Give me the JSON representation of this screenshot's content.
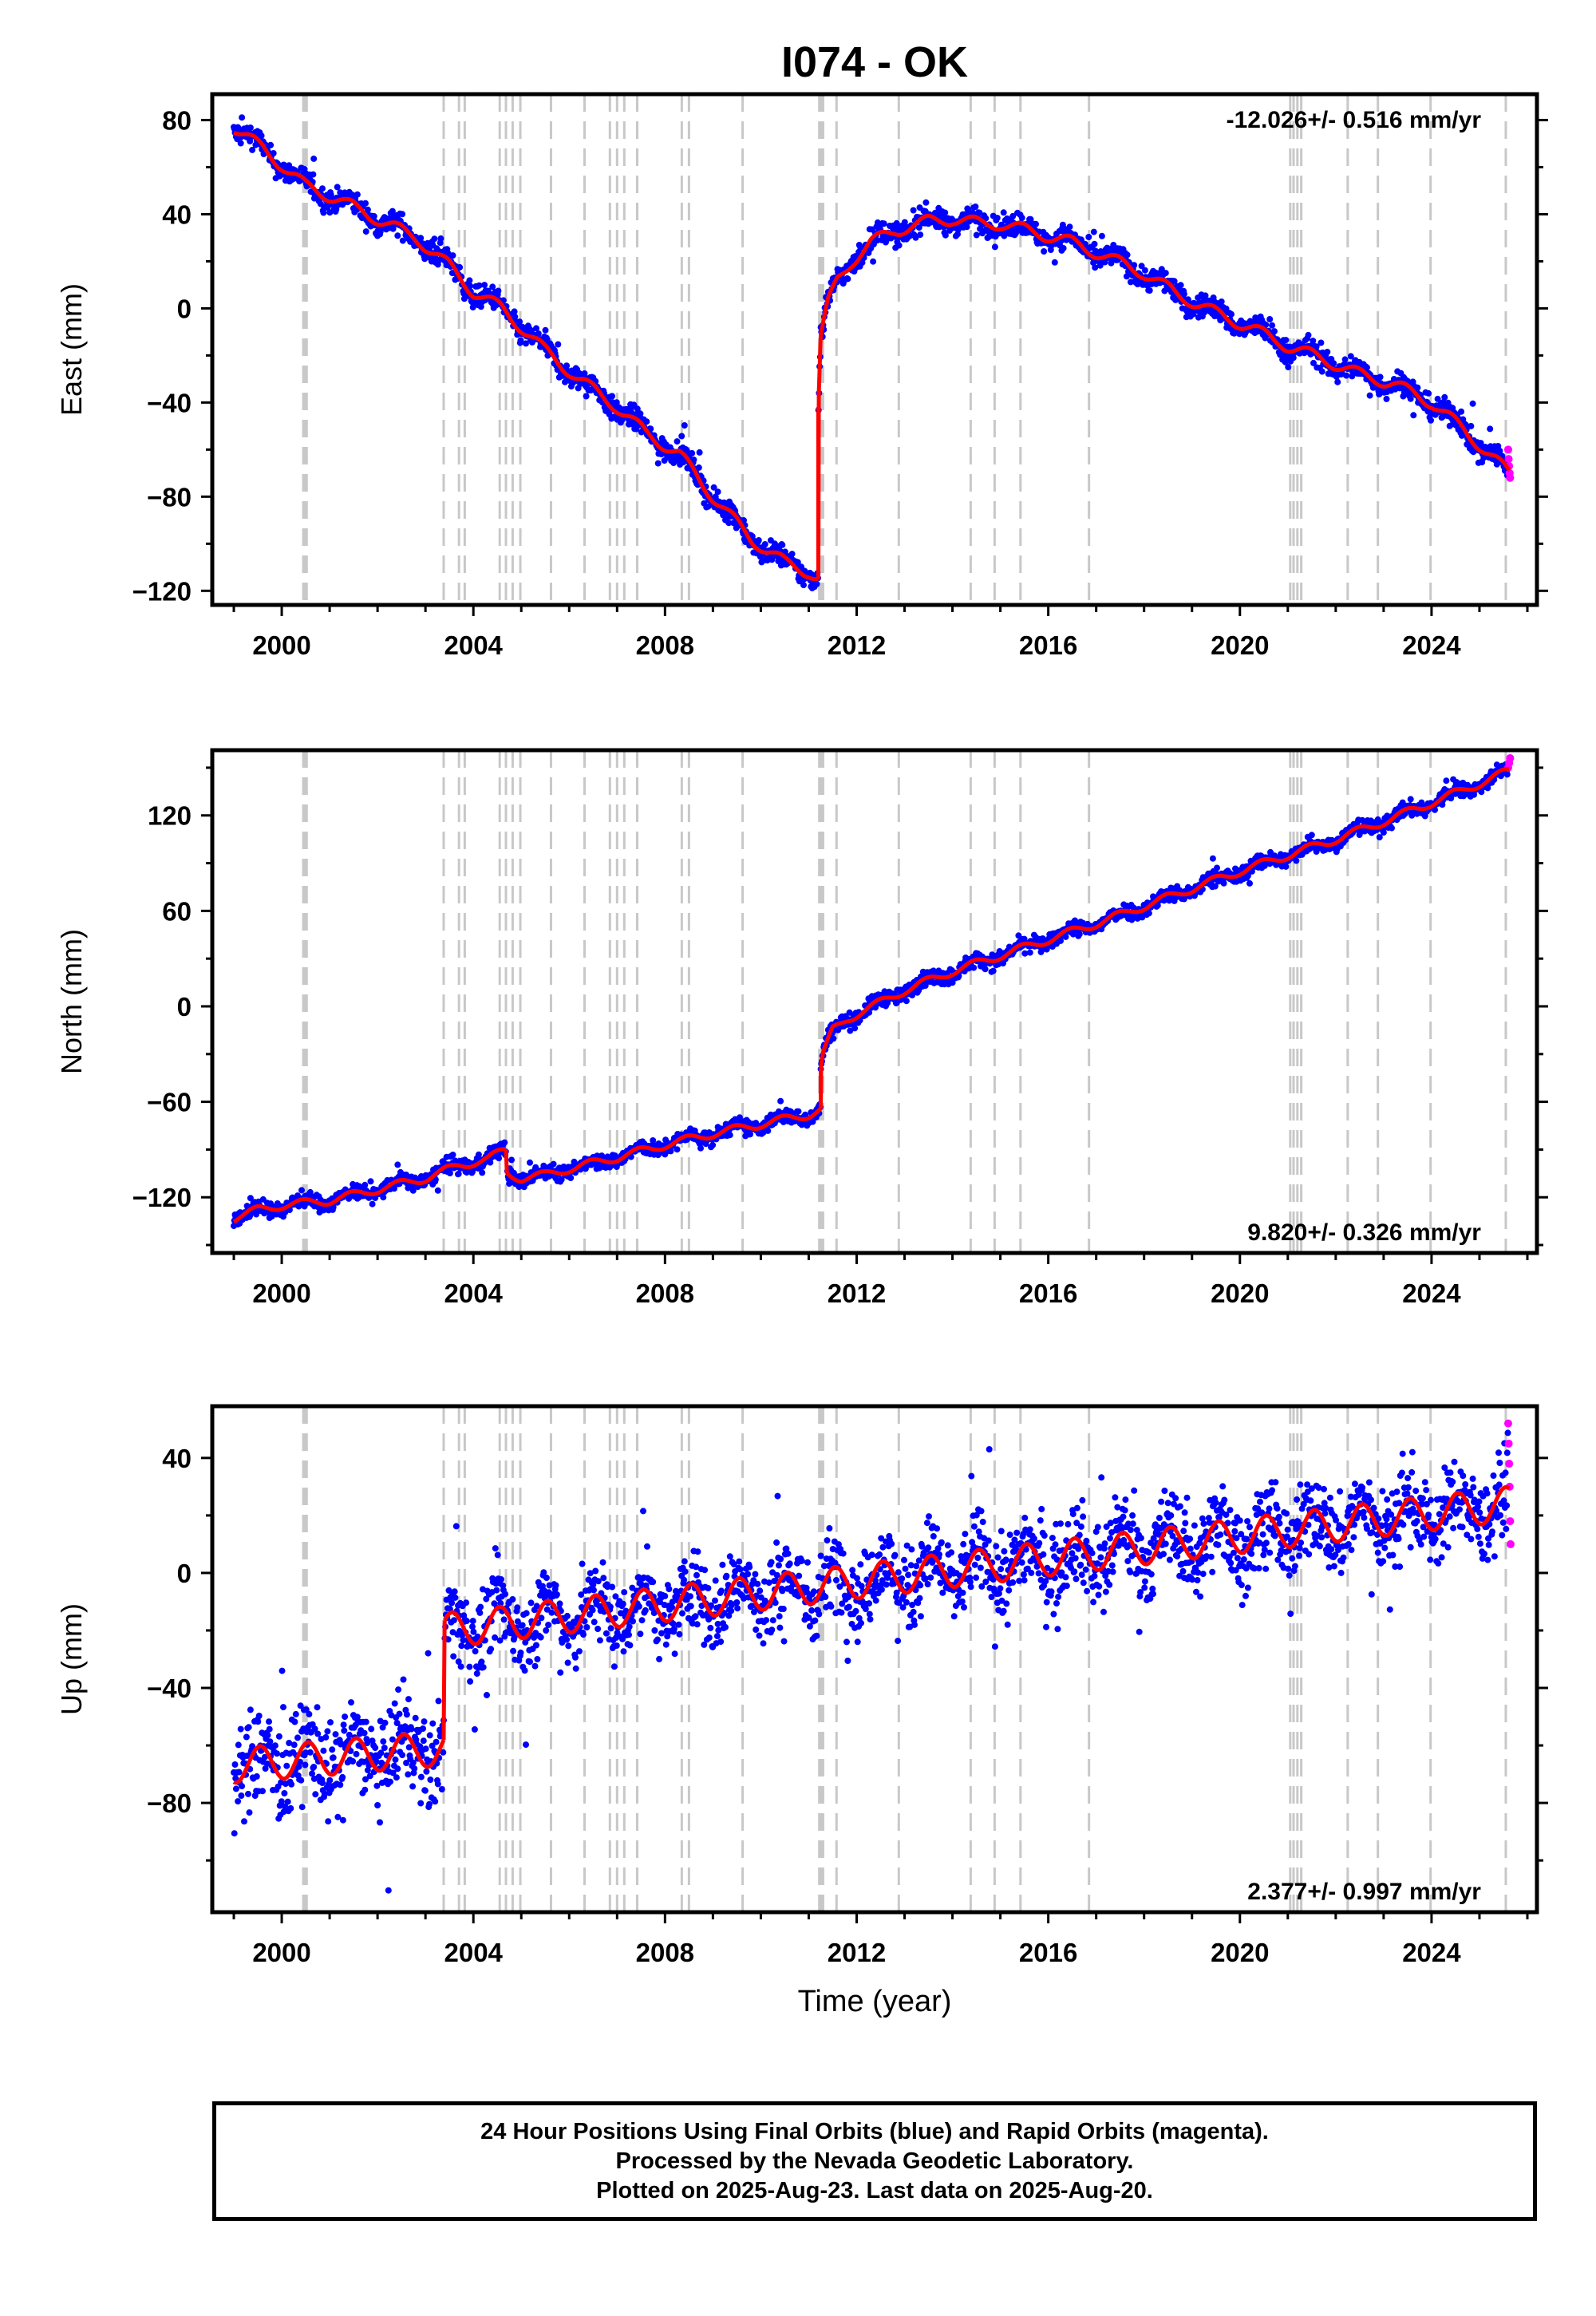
{
  "chart_data": {
    "type": "scatter",
    "title": "I074 - OK",
    "xlabel": "Time (year)",
    "xlim": [
      1998.55,
      2026.2
    ],
    "x_ticks": [
      2000,
      2004,
      2008,
      2012,
      2016,
      2020,
      2024
    ],
    "x_tick_labels": [
      "2000",
      "2004",
      "2008",
      "2012",
      "2016",
      "2020",
      "2024"
    ],
    "colors": {
      "final": "#0000ff",
      "rapid": "#ff00ff",
      "model": "#ff0000",
      "events": "#c8c8c8",
      "frame": "#000000"
    },
    "event_lines": [
      2000.45,
      2000.48,
      2000.5,
      2000.52,
      2003.38,
      2003.7,
      2003.82,
      2004.55,
      2004.68,
      2004.82,
      2004.98,
      2005.62,
      2006.32,
      2006.85,
      2007.0,
      2007.15,
      2007.42,
      2008.35,
      2008.5,
      2009.62,
      2011.22,
      2011.25,
      2011.27,
      2011.3,
      2011.58,
      2012.88,
      2014.38,
      2014.88,
      2015.42,
      2016.85,
      2021.05,
      2021.12,
      2021.2,
      2021.28,
      2022.25,
      2022.88,
      2023.98,
      2025.55
    ],
    "panels": [
      {
        "ylabel": "East (mm)",
        "ylim": [
          -126,
          91
        ],
        "y_ticks": [
          80,
          40,
          0,
          -40,
          -80,
          -120
        ],
        "y_tick_labels": [
          "80",
          "40",
          "0",
          "−40",
          "−80",
          "−120"
        ],
        "rate_label": "-12.026+/- 0.516 mm/yr",
        "rate_position": "top-right",
        "series": [
          {
            "x": [
              1999.0,
              1999.6,
              2000.5,
              2001.2,
              2002.0,
              2002.8,
              2003.5,
              2004.0,
              2004.6,
              2005.0,
              2005.5,
              2006.2,
              2007.0,
              2007.6,
              2008.3,
              2009.0,
              2009.8,
              2010.5,
              2011.0,
              2011.2
            ],
            "y": [
              77,
              68,
              52,
              46,
              38,
              30,
              18,
              7,
              0,
              -8,
              -18,
              -30,
              -42,
              -53,
              -62,
              -80,
              -98,
              -108,
              -112,
              -115
            ]
          },
          {
            "x": [
              2011.2,
              2011.25,
              2011.4,
              2011.6,
              2011.9,
              2012.3,
              2012.8,
              2013.5,
              2014.0,
              2014.6,
              2015.0,
              2015.6,
              2016.5,
              2017.2,
              2018.0,
              2018.7,
              2019.5,
              2020.2,
              2021.0,
              2021.8,
              2022.5,
              2023.2,
              2024.0,
              2024.7,
              2025.2,
              2025.62
            ],
            "y": [
              -42,
              -12,
              2,
              12,
              20,
              28,
              33,
              37,
              38,
              36,
              36,
              33,
              28,
              22,
              15,
              6,
              -2,
              -8,
              -16,
              -22,
              -28,
              -32,
              -40,
              -52,
              -62,
              -70
            ]
          }
        ],
        "rapid_points": {
          "x": [
            2025.6,
            2025.61,
            2025.62,
            2025.63,
            2025.64
          ],
          "y": [
            -60,
            -64,
            -67,
            -70,
            -72
          ]
        }
      },
      {
        "ylabel": "North (mm)",
        "ylim": [
          -155,
          161
        ],
        "y_ticks": [
          120,
          60,
          0,
          -60,
          -120
        ],
        "y_tick_labels": [
          "120",
          "60",
          "0",
          "−60",
          "−120"
        ],
        "rate_label": "9.820+/- 0.326 mm/yr",
        "rate_position": "bottom-right",
        "series": [
          {
            "x": [
              1999.0,
              1999.5,
              2000.0,
              2001.0,
              2002.0,
              2003.0,
              2003.7,
              2004.3,
              2004.68
            ],
            "y": [
              -133,
              -128,
              -125,
              -122,
              -115,
              -108,
              -100,
              -96,
              -90
            ]
          },
          {
            "x": [
              2004.7,
              2005.0,
              2005.5,
              2006.0,
              2007.0,
              2008.0,
              2009.0,
              2010.0,
              2011.0,
              2011.25
            ],
            "y": [
              -105,
              -108,
              -106,
              -102,
              -95,
              -87,
              -80,
              -74,
              -68,
              -65
            ]
          },
          {
            "x": [
              2011.25,
              2011.3,
              2011.5,
              2011.8,
              2012.2,
              2013.0,
              2014.0,
              2015.0,
              2016.0,
              2017.0,
              2018.0,
              2019.0,
              2020.0,
              2021.0,
              2022.0,
              2023.0,
              2024.0,
              2025.0,
              2025.62
            ],
            "y": [
              -40,
              -30,
              -15,
              -8,
              -2,
              10,
              22,
              32,
              42,
              52,
              63,
              74,
              85,
              95,
              105,
              116,
              128,
              140,
              148
            ]
          }
        ],
        "rapid_points": {
          "x": [
            2025.6,
            2025.62,
            2025.64
          ],
          "y": [
            150,
            153,
            156
          ]
        }
      },
      {
        "ylabel": "Up (mm)",
        "ylim": [
          -118,
          58
        ],
        "y_ticks": [
          40,
          0,
          -40,
          -80
        ],
        "y_tick_labels": [
          "40",
          "0",
          "−40",
          "−80"
        ],
        "rate_label": "2.377+/- 0.997 mm/yr",
        "rate_position": "bottom-right",
        "seasonal_amplitude_mm": 6,
        "series": [
          {
            "x": [
              1999.0,
              2003.38
            ],
            "y": [
              -67,
              -61
            ]
          },
          {
            "x": [
              2003.4,
              2025.62
            ],
            "y": [
              -20,
              24
            ]
          }
        ],
        "rapid_points": {
          "x": [
            2025.6,
            2025.61,
            2025.62,
            2025.63,
            2025.64,
            2025.65
          ],
          "y": [
            52,
            45,
            38,
            30,
            18,
            10
          ]
        }
      }
    ]
  },
  "footer": {
    "line1": "24 Hour Positions Using Final Orbits (blue) and Rapid Orbits (magenta).",
    "line2": "Processed by the Nevada Geodetic Laboratory.",
    "line3": "Plotted on 2025-Aug-23. Last data on 2025-Aug-20."
  }
}
